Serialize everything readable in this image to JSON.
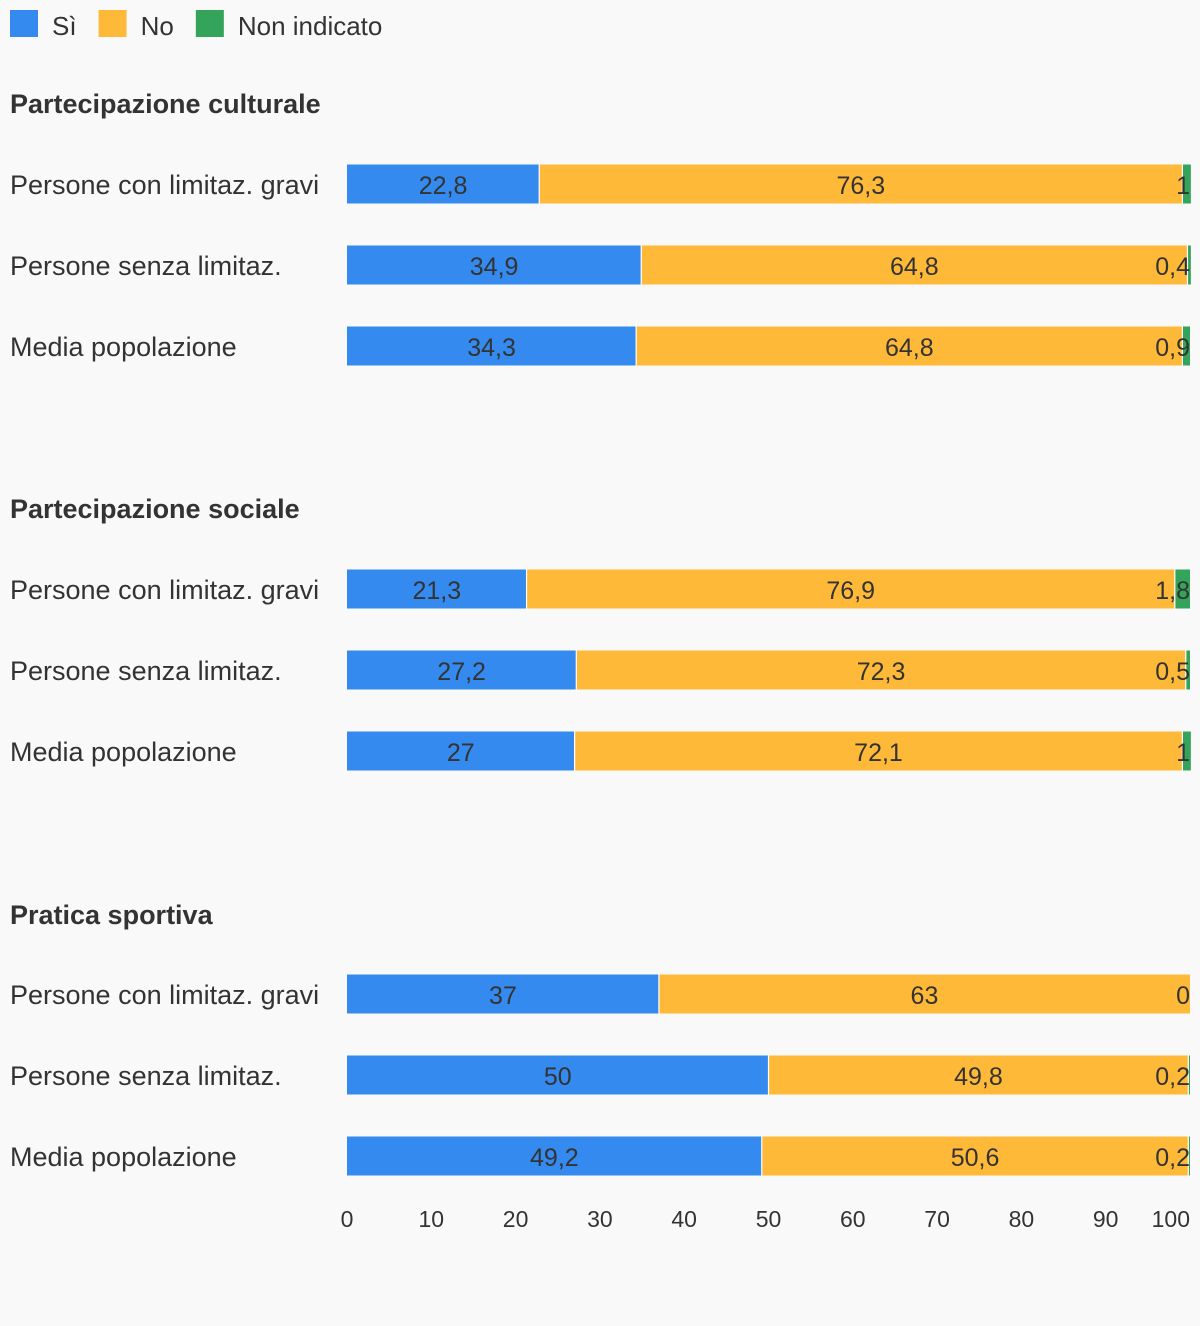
{
  "chart_data": {
    "type": "bar",
    "orientation": "horizontal",
    "stacked": true,
    "legend": {
      "position": "top-left",
      "items": [
        {
          "name": "Sì",
          "color": "#348aee"
        },
        {
          "name": "No",
          "color": "#ffb938"
        },
        {
          "name": "Non indicato",
          "color": "#33a45a"
        }
      ]
    },
    "groups": [
      {
        "title": "Partecipazione culturale",
        "rows": [
          {
            "label": "Persone con limitaz. gravi",
            "values": [
              22.8,
              76.3,
              1
            ],
            "labels": [
              "22,8",
              "76,3",
              "1"
            ]
          },
          {
            "label": "Persone senza limitaz.",
            "values": [
              34.9,
              64.8,
              0.4
            ],
            "labels": [
              "34,9",
              "64,8",
              "0,4"
            ]
          },
          {
            "label": "Media popolazione",
            "values": [
              34.3,
              64.8,
              0.9
            ],
            "labels": [
              "34,3",
              "64,8",
              "0,9"
            ]
          }
        ]
      },
      {
        "title": "Partecipazione sociale",
        "rows": [
          {
            "label": "Persone con limitaz. gravi",
            "values": [
              21.3,
              76.9,
              1.8
            ],
            "labels": [
              "21,3",
              "76,9",
              "1,8"
            ]
          },
          {
            "label": "Persone senza limitaz.",
            "values": [
              27.2,
              72.3,
              0.5
            ],
            "labels": [
              "27,2",
              "72,3",
              "0,5"
            ]
          },
          {
            "label": "Media popolazione",
            "values": [
              27,
              72.1,
              1
            ],
            "labels": [
              "27",
              "72,1",
              "1"
            ]
          }
        ]
      },
      {
        "title": "Pratica sportiva",
        "rows": [
          {
            "label": "Persone con limitaz. gravi",
            "values": [
              37,
              63,
              0
            ],
            "labels": [
              "37",
              "63",
              "0"
            ]
          },
          {
            "label": "Persone senza limitaz.",
            "values": [
              50,
              49.8,
              0.2
            ],
            "labels": [
              "50",
              "49,8",
              "0,2"
            ]
          },
          {
            "label": "Media popolazione",
            "values": [
              49.2,
              50.6,
              0.2
            ],
            "labels": [
              "49,2",
              "50,6",
              "0,2"
            ]
          }
        ]
      }
    ],
    "xlim": [
      0,
      100
    ],
    "xticks": [
      0,
      10,
      20,
      30,
      40,
      50,
      60,
      70,
      80,
      90,
      100
    ],
    "grid": false
  }
}
